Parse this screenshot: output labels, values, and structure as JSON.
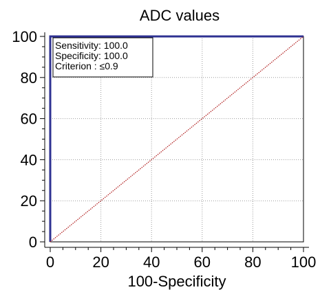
{
  "chart_data": {
    "type": "line",
    "title": "ADC values",
    "xlabel": "100-Specificity",
    "ylabel": "",
    "xlim": [
      0,
      100
    ],
    "ylim": [
      0,
      100
    ],
    "xticks": [
      "0",
      "20",
      "40",
      "60",
      "80",
      "100"
    ],
    "yticks": [
      "0",
      "20",
      "40",
      "60",
      "80",
      "100"
    ],
    "grid": true,
    "series": [
      {
        "role": "roc-curve",
        "color": "#2e3192",
        "style": "solid",
        "x": [
          0,
          0,
          100
        ],
        "y": [
          0,
          100,
          100
        ]
      },
      {
        "role": "reference-line",
        "color": "#b22222",
        "style": "dotted",
        "x": [
          0,
          100
        ],
        "y": [
          0,
          100
        ]
      }
    ],
    "info_box": {
      "sensitivity": "Sensitivity: 100.0",
      "specificity": "Specificity: 100.0",
      "criterion": "Criterion : ≤0.9"
    }
  }
}
